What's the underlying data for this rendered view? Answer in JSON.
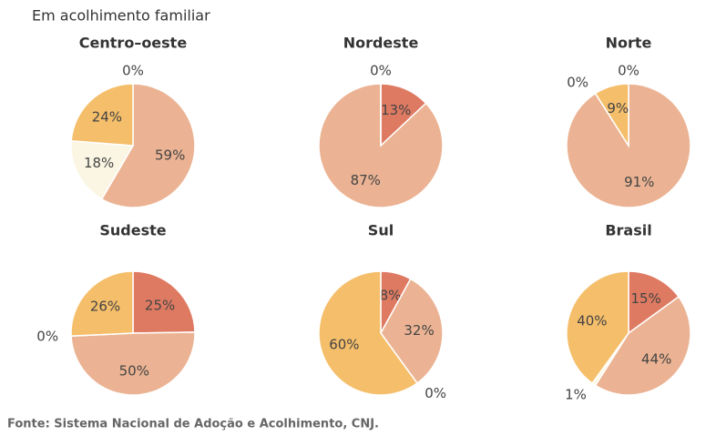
{
  "title": "Em acolhimento familiar",
  "source": "Fonte: Sistema Nacional de Adoção e Acolhimento, CNJ.",
  "chart_data": [
    {
      "type": "pie",
      "title": "Centro–oeste",
      "values": [
        0,
        59,
        18,
        24
      ],
      "value_labels": [
        "0%",
        "59%",
        "18%",
        "24%"
      ],
      "colors": [
        "#df7a62",
        "#ebb393",
        "#fbf6e3",
        "#f5be6a"
      ]
    },
    {
      "type": "pie",
      "title": "Nordeste",
      "values": [
        13,
        87,
        0
      ],
      "value_labels": [
        "13%",
        "87%",
        "0%"
      ],
      "colors": [
        "#df7a62",
        "#ebb393",
        "#f5be6a"
      ]
    },
    {
      "type": "pie",
      "title": "Norte",
      "values": [
        0,
        91,
        0,
        9
      ],
      "value_labels": [
        "0%",
        "91%",
        "0%",
        "9%"
      ],
      "colors": [
        "#df7a62",
        "#ebb393",
        "#fbf6e3",
        "#f5be6a"
      ]
    },
    {
      "type": "pie",
      "title": "Sudeste",
      "values": [
        25,
        50,
        0,
        26
      ],
      "value_labels": [
        "25%",
        "50%",
        "0%",
        "26%"
      ],
      "colors": [
        "#df7a62",
        "#ebb393",
        "#fbf6e3",
        "#f5be6a"
      ]
    },
    {
      "type": "pie",
      "title": "Sul",
      "values": [
        8,
        32,
        0,
        60
      ],
      "value_labels": [
        "8%",
        "32%",
        "0%",
        "60%"
      ],
      "colors": [
        "#df7a62",
        "#ebb393",
        "#fbf6e3",
        "#f5be6a"
      ]
    },
    {
      "type": "pie",
      "title": "Brasil",
      "values": [
        15,
        44,
        1,
        40
      ],
      "value_labels": [
        "15%",
        "44%",
        "1%",
        "40%"
      ],
      "colors": [
        "#df7a62",
        "#ebb393",
        "#fbf6e3",
        "#f5be6a"
      ]
    }
  ]
}
